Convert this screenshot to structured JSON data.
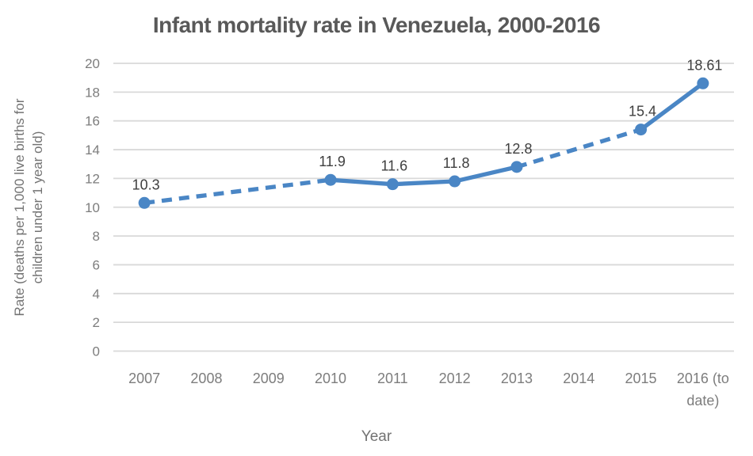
{
  "chart_data": {
    "type": "line",
    "title": "Infant mortality rate in Venezuela, 2000-2016",
    "xlabel": "Year",
    "ylabel": "Rate (deaths per 1,000 live births for\nchildren under 1 year old)",
    "categories": [
      "2007",
      "2008",
      "2009",
      "2010",
      "2011",
      "2012",
      "2013",
      "2014",
      "2015",
      "2016 (to\ndate)"
    ],
    "series": [
      {
        "name": "Infant mortality rate",
        "values": [
          10.3,
          null,
          null,
          11.9,
          11.6,
          11.8,
          12.8,
          null,
          15.4,
          18.61
        ],
        "labels": [
          "10.3",
          null,
          null,
          "11.9",
          "11.6",
          "11.8",
          "12.8",
          null,
          "15.4",
          "18.61"
        ]
      }
    ],
    "ylim": [
      0,
      20
    ],
    "ytick_step": 2,
    "grid": "horizontal",
    "legend": "none",
    "missing_data_style": "dashed-interpolated",
    "colors": {
      "line": "#4A86C5",
      "marker": "#4A86C5",
      "grid": "#D9D9D9",
      "title": "#595959",
      "tick": "#7D7D7D",
      "data_label": "#3F3F3F"
    }
  }
}
